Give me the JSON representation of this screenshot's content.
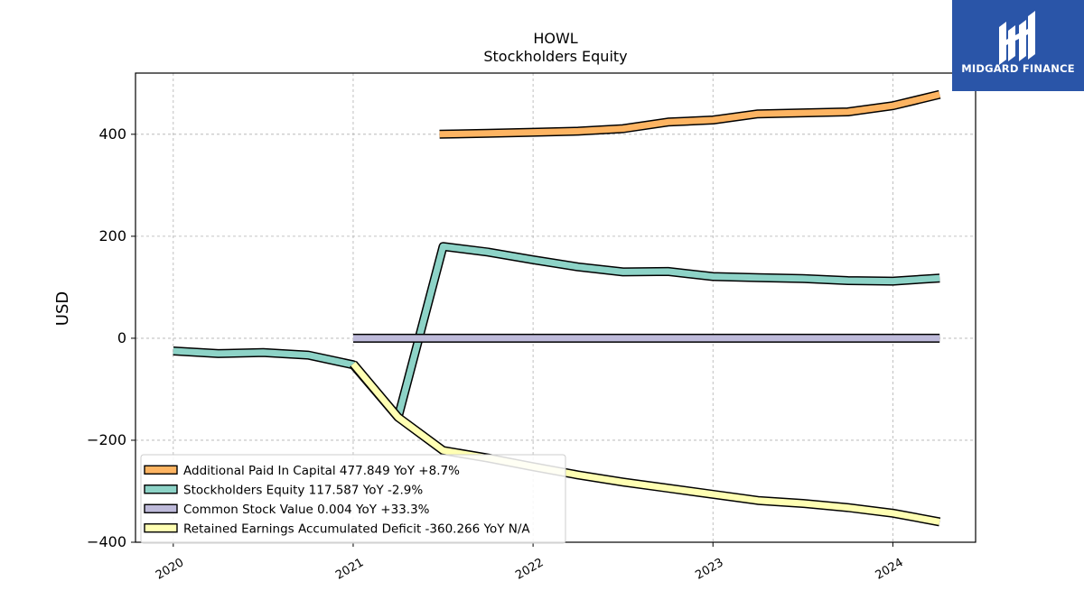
{
  "logo": {
    "brand": "MIDGARD FINANCE",
    "color": "#2a55a8"
  },
  "chart_data": {
    "type": "line",
    "title": "HOWL",
    "subtitle": "Stockholders  Equity",
    "ylabel": "USD",
    "xlabel": "",
    "ylim": [
      -400,
      520
    ],
    "yticks": [
      -400,
      -200,
      0,
      200,
      400
    ],
    "xlim": [
      2019.79,
      2024.46
    ],
    "xticks": [
      2020,
      2021,
      2022,
      2023,
      2024
    ],
    "xtick_labels": [
      "2020",
      "2021",
      "2022",
      "2023",
      "2024"
    ],
    "grid": true,
    "legend_position": "lower-left",
    "series": [
      {
        "name": "Additional Paid In Capital  477.849 YoY +8.7%",
        "color": "#fdb462",
        "x": [
          2021.48,
          2021.75,
          2022.0,
          2022.25,
          2022.5,
          2022.75,
          2023.0,
          2023.25,
          2023.5,
          2023.75,
          2024.0,
          2024.26
        ],
        "y": [
          400,
          402,
          404,
          406,
          411,
          424,
          428,
          440,
          442,
          444,
          456,
          478
        ]
      },
      {
        "name": "Stockholders Equity  117.587 YoY -2.9%",
        "color": "#8dd3c7",
        "x": [
          2020.0,
          2020.25,
          2020.5,
          2020.75,
          2021.0,
          2021.25,
          2021.5,
          2021.75,
          2022.0,
          2022.25,
          2022.5,
          2022.75,
          2023.0,
          2023.25,
          2023.5,
          2023.75,
          2024.0,
          2024.26
        ],
        "y": [
          -25,
          -30,
          -28,
          -33,
          -52,
          -155,
          180,
          169,
          154,
          140,
          130,
          131,
          121,
          119,
          117,
          113,
          112,
          118
        ]
      },
      {
        "name": "Common Stock Value  0.004 YoY +33.3%",
        "color": "#bebada",
        "x": [
          2021.0,
          2021.25,
          2021.5,
          2021.75,
          2022.0,
          2022.25,
          2022.5,
          2022.75,
          2023.0,
          2023.25,
          2023.5,
          2023.75,
          2024.0,
          2024.26
        ],
        "y": [
          0,
          0,
          0,
          0,
          0,
          0,
          0,
          0,
          0,
          0,
          0,
          0,
          0,
          0
        ]
      },
      {
        "name": "Retained Earnings Accumulated Deficit  -360.266 YoY N/A",
        "color": "#ffffb3",
        "x": [
          2021.0,
          2021.25,
          2021.5,
          2021.75,
          2022.0,
          2022.25,
          2022.5,
          2022.75,
          2023.0,
          2023.25,
          2023.5,
          2023.75,
          2024.0,
          2024.26
        ],
        "y": [
          -50,
          -155,
          -220,
          -235,
          -252,
          -268,
          -282,
          -294,
          -306,
          -318,
          -324,
          -332,
          -343,
          -360
        ]
      }
    ]
  }
}
